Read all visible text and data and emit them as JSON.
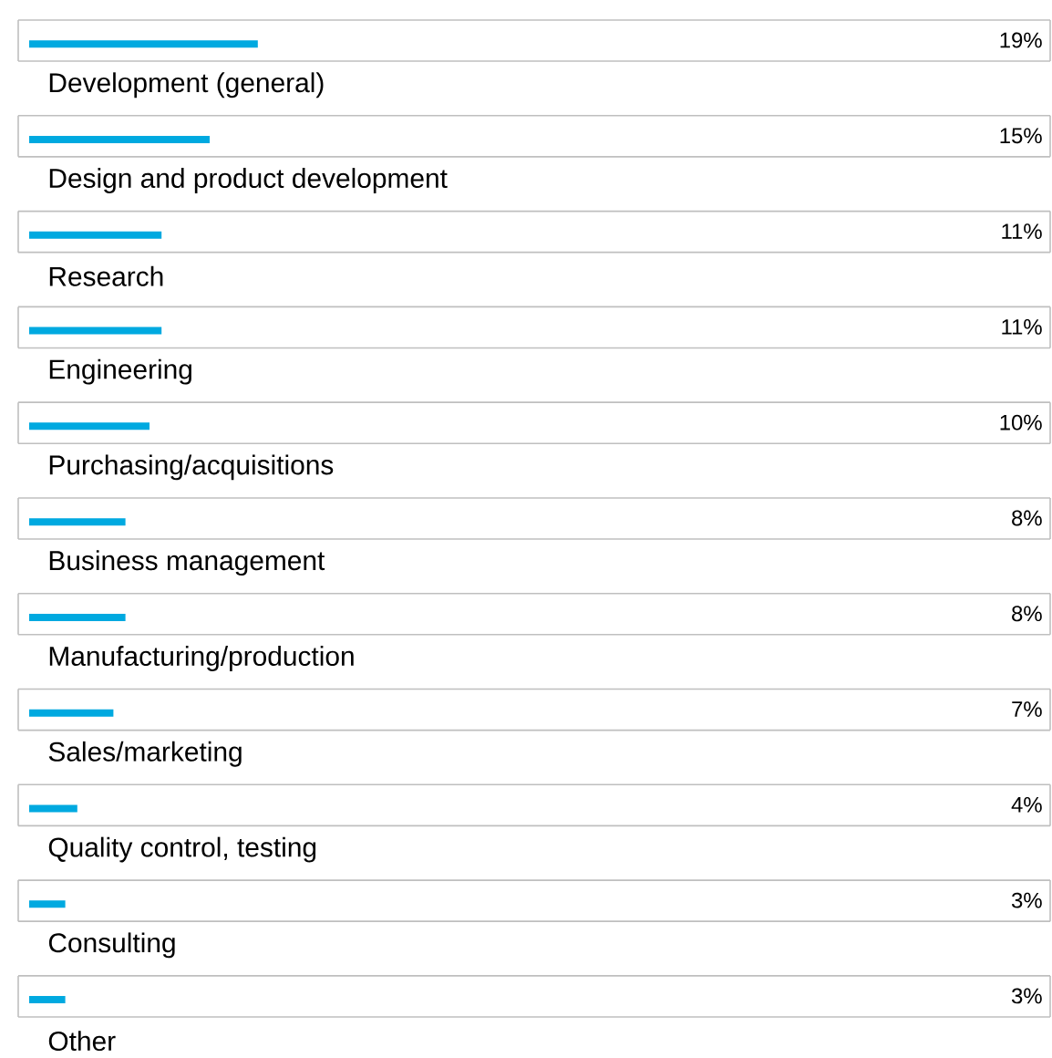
{
  "chart_data": {
    "type": "bar",
    "orientation": "horizontal",
    "categories": [
      "Development (general)",
      "Design and product development",
      "Research",
      "Engineering",
      "Purchasing/acquisitions",
      "Business management",
      "Manufacturing/production",
      "Sales/marketing",
      "Quality control, testing",
      "Consulting",
      "Other"
    ],
    "values": [
      19,
      15,
      11,
      11,
      10,
      8,
      8,
      7,
      4,
      3,
      3
    ],
    "value_labels": [
      "19%",
      "15%",
      "11%",
      "11%",
      "10%",
      "8%",
      "8%",
      "7%",
      "4%",
      "3%",
      "3%"
    ],
    "color": "#00a9e0"
  }
}
